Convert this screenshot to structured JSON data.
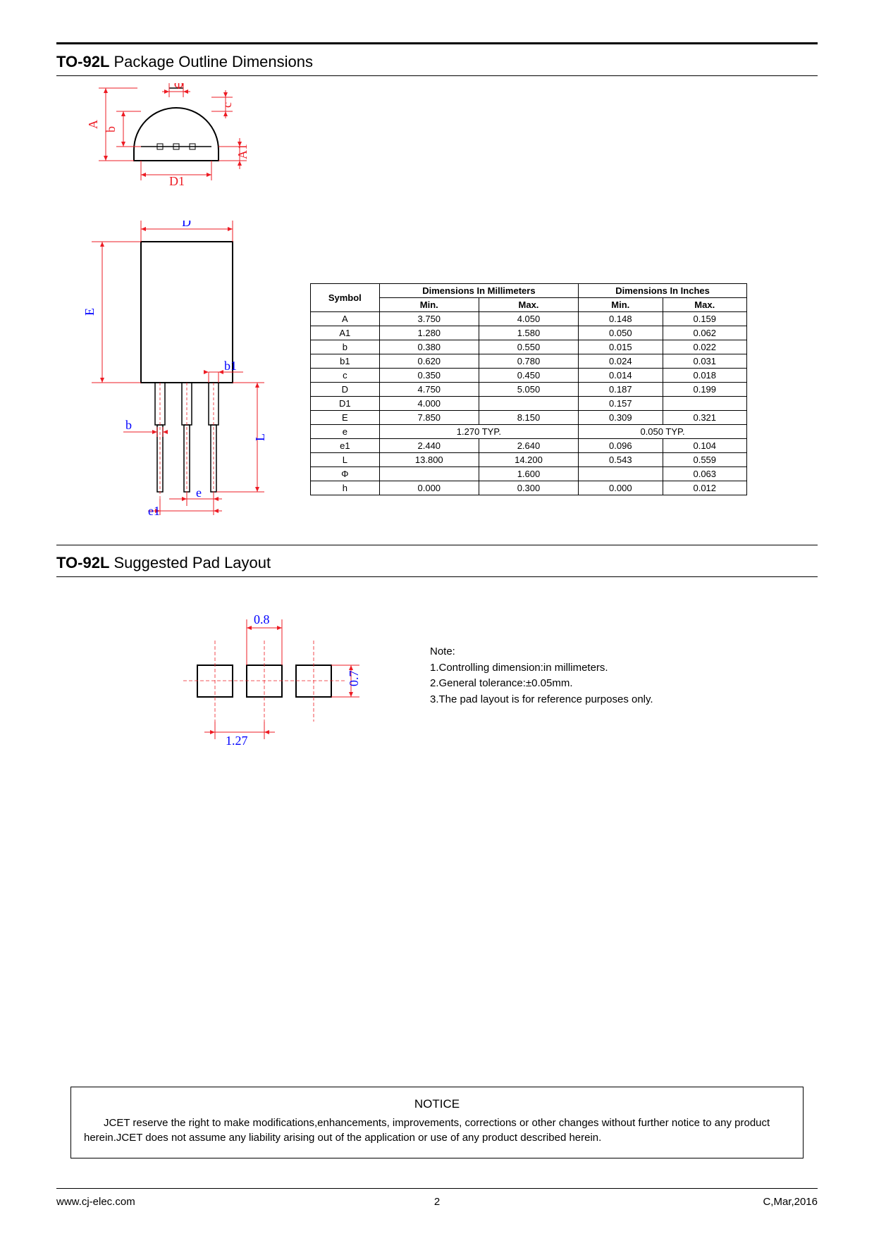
{
  "section1": {
    "title_bold": "TO-92L",
    "title_rest": " Package Outline Dimensions"
  },
  "section2": {
    "title_bold": "TO-92L",
    "title_rest": " Suggested Pad Layout"
  },
  "diagram_labels_top": {
    "phi": "Φ",
    "A": "A",
    "b": "b",
    "c": "c",
    "A1": "A1",
    "D1": "D1"
  },
  "diagram_labels_side": {
    "D": "D",
    "E": "E",
    "b1": "b1",
    "b": "b",
    "L": "L",
    "e": "e",
    "e1": "e1"
  },
  "pad_labels": {
    "w": "0.8",
    "h": "0.7",
    "p": "1.27"
  },
  "table": {
    "type": "table",
    "header_symbol": "Symbol",
    "header_mm": "Dimensions In Millimeters",
    "header_in": "Dimensions In Inches",
    "header_min": "Min.",
    "header_max": "Max.",
    "rows": [
      {
        "sym": "A",
        "mm_min": "3.750",
        "mm_max": "4.050",
        "in_min": "0.148",
        "in_max": "0.159"
      },
      {
        "sym": "A1",
        "mm_min": "1.280",
        "mm_max": "1.580",
        "in_min": "0.050",
        "in_max": "0.062"
      },
      {
        "sym": "b",
        "mm_min": "0.380",
        "mm_max": "0.550",
        "in_min": "0.015",
        "in_max": "0.022"
      },
      {
        "sym": "b1",
        "mm_min": "0.620",
        "mm_max": "0.780",
        "in_min": "0.024",
        "in_max": "0.031"
      },
      {
        "sym": "c",
        "mm_min": "0.350",
        "mm_max": "0.450",
        "in_min": "0.014",
        "in_max": "0.018"
      },
      {
        "sym": "D",
        "mm_min": "4.750",
        "mm_max": "5.050",
        "in_min": "0.187",
        "in_max": "0.199"
      },
      {
        "sym": "D1",
        "mm_min": "4.000",
        "mm_max": "",
        "in_min": "0.157",
        "in_max": ""
      },
      {
        "sym": "E",
        "mm_min": "7.850",
        "mm_max": "8.150",
        "in_min": "0.309",
        "in_max": "0.321"
      },
      {
        "sym": "e",
        "mm_span": "1.270 TYP.",
        "in_span": "0.050 TYP."
      },
      {
        "sym": "e1",
        "mm_min": "2.440",
        "mm_max": "2.640",
        "in_min": "0.096",
        "in_max": "0.104"
      },
      {
        "sym": "L",
        "mm_min": "13.800",
        "mm_max": "14.200",
        "in_min": "0.543",
        "in_max": "0.559"
      },
      {
        "sym": "Φ",
        "mm_min": "",
        "mm_max": "1.600",
        "in_min": "",
        "in_max": "0.063"
      },
      {
        "sym": "h",
        "mm_min": "0.000",
        "mm_max": "0.300",
        "in_min": "0.000",
        "in_max": "0.012"
      }
    ]
  },
  "notes": {
    "title": "Note:",
    "l1": "1.Controlling dimension:in millimeters.",
    "l2": "2.General tolerance:±0.05mm.",
    "l3": "3.The pad layout is for reference purposes only."
  },
  "notice": {
    "title": "NOTICE",
    "body": "JCET  reserve the right to make modifications,enhancements, improvements, corrections or other changes without further notice to any product herein.JCET does not assume any liability arising out of the application or use of any product described herein."
  },
  "footer": {
    "url": "www.cj-elec.com",
    "page": "2",
    "rev": "C,Mar,2016"
  },
  "colors": {
    "dim": "#ed1c24",
    "blue": "#0000ff",
    "text": "#000000"
  }
}
